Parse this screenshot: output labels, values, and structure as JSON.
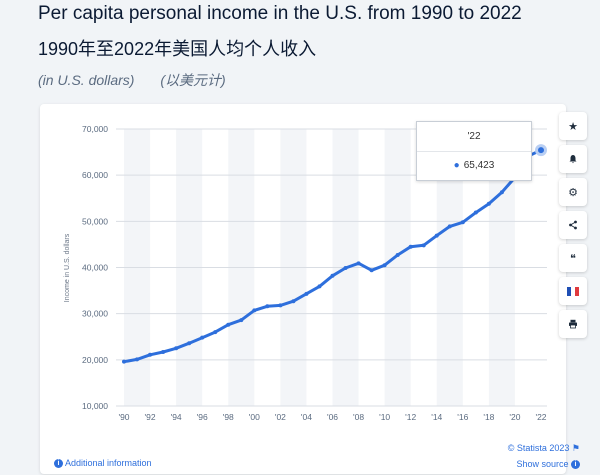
{
  "title_en": "Per capita personal income in the U.S. from 1990 to 2022",
  "title_zh": "1990年至2022年美国人均个人收入",
  "subtitle_en": "(in U.S. dollars)",
  "subtitle_zh": "(以美元计)",
  "tooltip": {
    "label": "'22",
    "value": "65,423"
  },
  "footer": {
    "additional_info": "Additional information",
    "copyright": "© Statista 2023",
    "show_source": "Show source"
  },
  "toolbar_icons": [
    "star-icon",
    "bell-icon",
    "gear-icon",
    "share-icon",
    "quote-icon",
    "flag-icon",
    "print-icon"
  ],
  "colors": {
    "line": "#2e6fdc",
    "band": "#f3f5f8",
    "grid": "#d9dde3"
  },
  "chart_data": {
    "type": "line",
    "title": "Per capita personal income in the U.S. from 1990 to 2022",
    "xlabel": "",
    "ylabel": "Income in U.S. dollars",
    "ylim": [
      10000,
      70000
    ],
    "yticks": [
      "10,000",
      "20,000",
      "30,000",
      "40,000",
      "50,000",
      "60,000",
      "70,000"
    ],
    "xticks": [
      "'90",
      "'92",
      "'94",
      "'96",
      "'98",
      "'00",
      "'02",
      "'04",
      "'06",
      "'08",
      "'10",
      "'12",
      "'14",
      "'16",
      "'18",
      "'20",
      "'22"
    ],
    "grid": true,
    "x": [
      1990,
      1991,
      1992,
      1993,
      1994,
      1995,
      1996,
      1997,
      1998,
      1999,
      2000,
      2001,
      2002,
      2003,
      2004,
      2005,
      2006,
      2007,
      2008,
      2009,
      2010,
      2011,
      2012,
      2013,
      2014,
      2015,
      2016,
      2017,
      2018,
      2019,
      2020,
      2021,
      2022
    ],
    "series": [
      {
        "values": [
          19600,
          20100,
          21100,
          21700,
          22500,
          23600,
          24800,
          26000,
          27600,
          28600,
          30700,
          31600,
          31800,
          32700,
          34300,
          35900,
          38200,
          39900,
          40900,
          39400,
          40500,
          42700,
          44500,
          44800,
          46900,
          48900,
          49800,
          51900,
          53800,
          56300,
          59500,
          64100,
          65423
        ]
      }
    ]
  }
}
